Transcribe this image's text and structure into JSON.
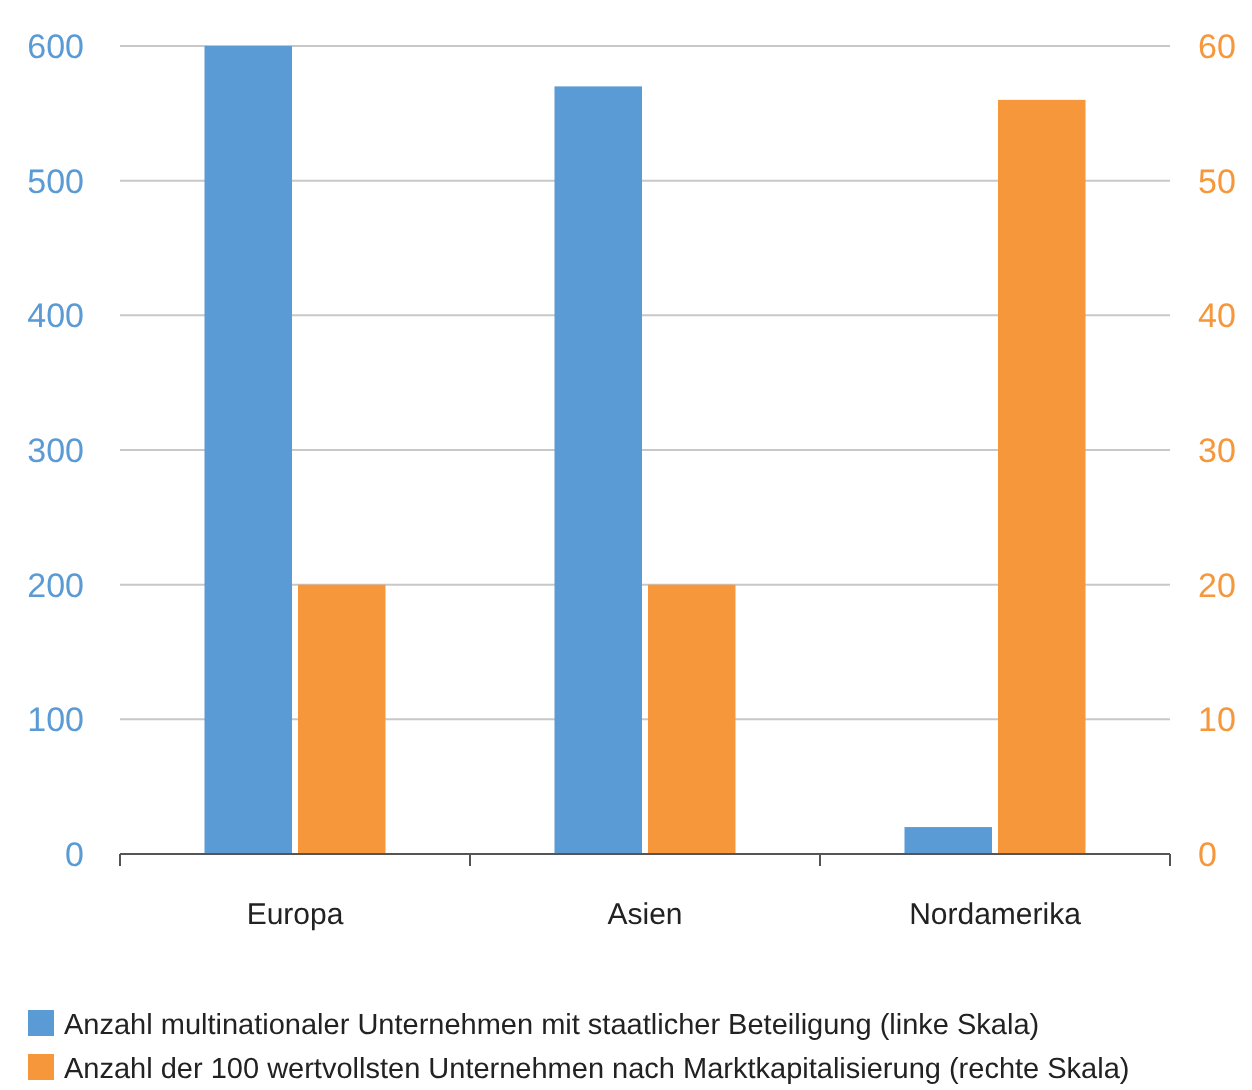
{
  "chart_data": {
    "type": "bar",
    "categories": [
      "Europa",
      "Asien",
      "Nordamerika"
    ],
    "series": [
      {
        "name": "Anzahl multinationaler Unternehmen mit staatlicher Beteiligung (linke Skala)",
        "color": "#5b9bd5",
        "values": [
          600,
          570,
          20
        ]
      },
      {
        "name": "Anzahl der 100 wertvollsten Unternehmen nach Marktkapitalisierung (rechte Skala)",
        "color": "#f5973a",
        "values": [
          20,
          20,
          56
        ],
        "axis": "y2"
      }
    ],
    "ylim": [
      0,
      600
    ],
    "yticks": [
      0,
      100,
      200,
      300,
      400,
      500,
      600
    ],
    "y2lim": [
      0,
      60
    ],
    "y2ticks": [
      0,
      10,
      20,
      30,
      40,
      50,
      60
    ],
    "grid": "y",
    "legend": "bottom"
  }
}
